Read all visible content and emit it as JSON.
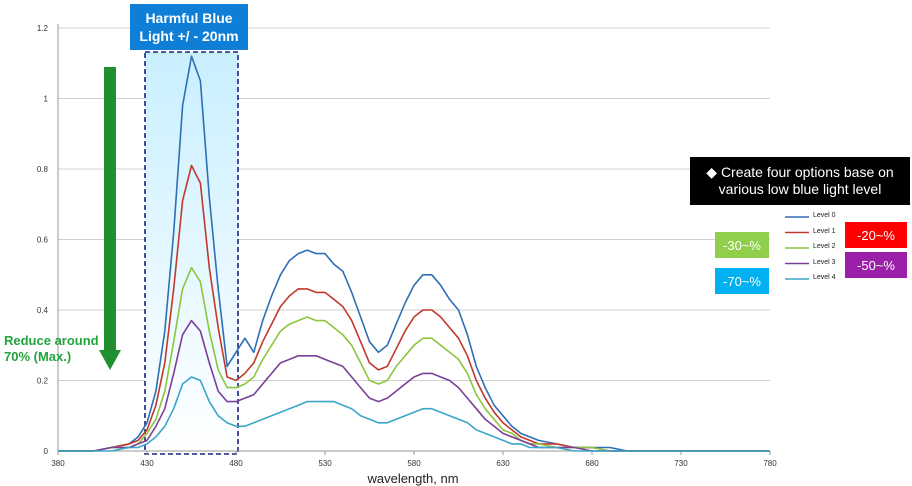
{
  "chart_data": {
    "type": "line",
    "xlabel": "wavelength, nm",
    "ylabel": "",
    "xlim": [
      380,
      780
    ],
    "ylim": [
      0,
      1.2
    ],
    "x_ticks": [
      "380",
      "430",
      "480",
      "530",
      "580",
      "630",
      "680",
      "730",
      "780"
    ],
    "y_ticks": [
      "0",
      "0.2",
      "0.4",
      "0.6",
      "0.8",
      "1",
      "1.2"
    ],
    "grid": "horizontal",
    "legend_position": "right",
    "x": [
      380,
      400,
      410,
      420,
      425,
      430,
      435,
      440,
      445,
      450,
      455,
      460,
      465,
      470,
      475,
      480,
      485,
      490,
      495,
      500,
      505,
      510,
      515,
      520,
      525,
      530,
      535,
      540,
      545,
      550,
      555,
      560,
      565,
      570,
      575,
      580,
      585,
      590,
      595,
      600,
      605,
      610,
      615,
      620,
      625,
      630,
      635,
      640,
      645,
      650,
      660,
      670,
      680,
      690,
      700,
      720,
      740,
      760,
      780
    ],
    "series": [
      {
        "name": "Level 0",
        "color": "#2e6fb5",
        "values": [
          0.0,
          0.0,
          0.01,
          0.02,
          0.04,
          0.08,
          0.17,
          0.34,
          0.62,
          0.98,
          1.12,
          1.05,
          0.72,
          0.46,
          0.24,
          0.28,
          0.32,
          0.28,
          0.37,
          0.44,
          0.5,
          0.54,
          0.56,
          0.57,
          0.56,
          0.56,
          0.53,
          0.51,
          0.45,
          0.38,
          0.31,
          0.28,
          0.3,
          0.36,
          0.42,
          0.47,
          0.5,
          0.5,
          0.47,
          0.43,
          0.4,
          0.33,
          0.24,
          0.18,
          0.13,
          0.1,
          0.07,
          0.05,
          0.04,
          0.03,
          0.02,
          0.01,
          0.01,
          0.01,
          0.0,
          0.0,
          0.0,
          0.0,
          0.0
        ]
      },
      {
        "name": "Level 1",
        "color": "#c0392b",
        "values": [
          0.0,
          0.0,
          0.01,
          0.02,
          0.03,
          0.06,
          0.13,
          0.25,
          0.46,
          0.71,
          0.81,
          0.76,
          0.52,
          0.35,
          0.21,
          0.2,
          0.22,
          0.25,
          0.31,
          0.36,
          0.41,
          0.44,
          0.46,
          0.46,
          0.45,
          0.45,
          0.43,
          0.41,
          0.37,
          0.31,
          0.25,
          0.23,
          0.24,
          0.29,
          0.34,
          0.38,
          0.4,
          0.4,
          0.38,
          0.35,
          0.32,
          0.27,
          0.2,
          0.15,
          0.11,
          0.08,
          0.06,
          0.04,
          0.03,
          0.02,
          0.02,
          0.01,
          0.01,
          0.0,
          0.0,
          0.0,
          0.0,
          0.0,
          0.0
        ]
      },
      {
        "name": "Level 2",
        "color": "#8cc63f",
        "values": [
          0.0,
          0.0,
          0.01,
          0.01,
          0.02,
          0.05,
          0.09,
          0.17,
          0.31,
          0.46,
          0.52,
          0.48,
          0.34,
          0.23,
          0.18,
          0.18,
          0.19,
          0.21,
          0.26,
          0.3,
          0.34,
          0.36,
          0.37,
          0.38,
          0.37,
          0.37,
          0.35,
          0.33,
          0.3,
          0.25,
          0.2,
          0.19,
          0.2,
          0.24,
          0.27,
          0.3,
          0.32,
          0.32,
          0.3,
          0.28,
          0.26,
          0.22,
          0.16,
          0.12,
          0.09,
          0.06,
          0.05,
          0.03,
          0.02,
          0.02,
          0.01,
          0.01,
          0.01,
          0.0,
          0.0,
          0.0,
          0.0,
          0.0,
          0.0
        ]
      },
      {
        "name": "Level 3",
        "color": "#7b3f98",
        "values": [
          0.0,
          0.0,
          0.01,
          0.01,
          0.02,
          0.03,
          0.07,
          0.12,
          0.22,
          0.33,
          0.37,
          0.34,
          0.25,
          0.17,
          0.14,
          0.14,
          0.15,
          0.16,
          0.19,
          0.22,
          0.25,
          0.26,
          0.27,
          0.27,
          0.27,
          0.26,
          0.25,
          0.24,
          0.21,
          0.18,
          0.15,
          0.14,
          0.15,
          0.17,
          0.19,
          0.21,
          0.22,
          0.22,
          0.21,
          0.2,
          0.18,
          0.15,
          0.12,
          0.09,
          0.07,
          0.05,
          0.04,
          0.03,
          0.02,
          0.01,
          0.01,
          0.01,
          0.0,
          0.0,
          0.0,
          0.0,
          0.0,
          0.0,
          0.0
        ]
      },
      {
        "name": "Level 4",
        "color": "#3ba6c9",
        "values": [
          0.0,
          0.0,
          0.0,
          0.01,
          0.01,
          0.02,
          0.04,
          0.07,
          0.12,
          0.19,
          0.21,
          0.2,
          0.14,
          0.1,
          0.08,
          0.07,
          0.07,
          0.08,
          0.09,
          0.1,
          0.11,
          0.12,
          0.13,
          0.14,
          0.14,
          0.14,
          0.14,
          0.13,
          0.12,
          0.1,
          0.09,
          0.08,
          0.08,
          0.09,
          0.1,
          0.11,
          0.12,
          0.12,
          0.11,
          0.1,
          0.09,
          0.08,
          0.06,
          0.05,
          0.04,
          0.03,
          0.02,
          0.02,
          0.01,
          0.01,
          0.01,
          0.0,
          0.0,
          0.0,
          0.0,
          0.0,
          0.0,
          0.0,
          0.0
        ]
      }
    ],
    "highlight_band": {
      "x_start": 430,
      "x_end": 480
    }
  },
  "annotations": {
    "harmful_title": "Harmful Blue Light +/ - 20nm",
    "reduce_text": "Reduce around 70% (Max.)",
    "note_bullet": "◆",
    "note_text": "Create four options base on various low blue light level",
    "badges": {
      "minus30": "-30~%",
      "minus70": "-70~%",
      "minus20": "-20~%",
      "minus50": "-50~%"
    }
  },
  "colors": {
    "harmful_box": "#0e7ed6",
    "band_fill": "#c9efff",
    "dashed_border": "#1a237e",
    "arrow": "#1f8f2f",
    "reduce_text": "#22a53b"
  }
}
